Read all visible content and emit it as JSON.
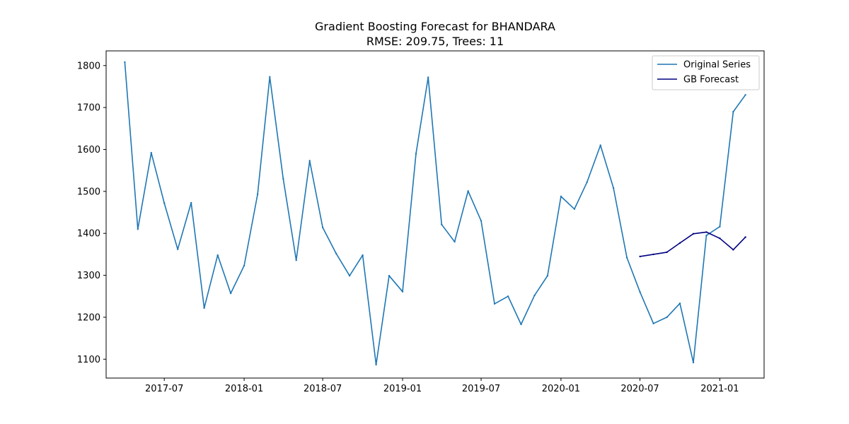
{
  "chart_data": {
    "type": "line",
    "title": "Gradient Boosting Forecast for BHANDARA",
    "subtitle": "RMSE: 209.75, Trees: 11",
    "xlabel": "",
    "ylabel": "",
    "xlim": [
      "2017-02-17",
      "2021-04-13"
    ],
    "ylim": [
      1055,
      1835
    ],
    "grid": false,
    "legend_position": "top-right",
    "x_ticks": [
      "2017-07",
      "2018-01",
      "2018-07",
      "2019-01",
      "2019-07",
      "2020-01",
      "2020-07",
      "2021-01"
    ],
    "y_ticks": [
      1100,
      1200,
      1300,
      1400,
      1500,
      1600,
      1700,
      1800
    ],
    "series": [
      {
        "name": "Original Series",
        "color": "#1f77b4",
        "x": [
          "2017-04-01",
          "2017-05-01",
          "2017-06-01",
          "2017-07-01",
          "2017-08-01",
          "2017-09-01",
          "2017-10-01",
          "2017-11-01",
          "2017-12-01",
          "2018-01-01",
          "2018-02-01",
          "2018-03-01",
          "2018-04-01",
          "2018-05-01",
          "2018-06-01",
          "2018-07-01",
          "2018-08-01",
          "2018-09-01",
          "2018-10-01",
          "2018-11-01",
          "2018-12-01",
          "2019-01-01",
          "2019-02-01",
          "2019-03-01",
          "2019-04-01",
          "2019-05-01",
          "2019-06-01",
          "2019-07-01",
          "2019-08-01",
          "2019-09-01",
          "2019-10-01",
          "2019-11-01",
          "2019-12-01",
          "2020-01-01",
          "2020-02-01",
          "2020-03-01",
          "2020-04-01",
          "2020-05-01",
          "2020-06-01",
          "2020-07-01",
          "2020-08-01",
          "2020-09-01",
          "2020-10-01",
          "2020-11-01",
          "2020-12-01",
          "2021-01-01",
          "2021-02-01",
          "2021-03-01"
        ],
        "values": [
          1808,
          1410,
          1592,
          1472,
          1362,
          1473,
          1222,
          1348,
          1257,
          1323,
          1493,
          1773,
          1530,
          1336,
          1573,
          1414,
          1352,
          1299,
          1348,
          1087,
          1299,
          1261,
          1590,
          1772,
          1421,
          1380,
          1501,
          1430,
          1232,
          1250,
          1183,
          1252,
          1299,
          1488,
          1458,
          1522,
          1610,
          1508,
          1342,
          1260,
          1185,
          1200,
          1233,
          1092,
          1395,
          1416,
          1690,
          1730
        ]
      },
      {
        "name": "GB Forecast",
        "color": "#000080",
        "x": [
          "2020-07-01",
          "2020-08-01",
          "2020-09-01",
          "2020-10-01",
          "2020-11-01",
          "2020-12-01",
          "2021-01-01",
          "2021-02-01",
          "2021-03-01"
        ],
        "values": [
          1345,
          1350,
          1355,
          1377,
          1399,
          1403,
          1388,
          1361,
          1391
        ]
      }
    ]
  }
}
